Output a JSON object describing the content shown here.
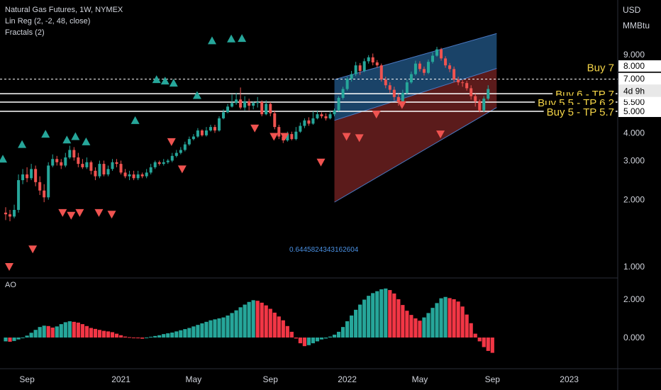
{
  "header": {
    "title": "Natural Gas Futures, 1W, NYMEX",
    "indicator1": "Lin Reg (2, -2, 48, close)",
    "indicator2": "Fractals (2)",
    "currency": "USD",
    "unit": "MMBtu"
  },
  "ao_label": "AO",
  "price_tag": {
    "value": "6.976",
    "countdown": "4d 9h"
  },
  "colors": {
    "up": "#26a69a",
    "down": "#ef5350",
    "ao_up": "#26a69a",
    "ao_down": "#f23645",
    "channel_upper": "#1e4f7a",
    "channel_lower": "#6b2020",
    "label": "#f5d547"
  },
  "chart_data": [
    {
      "type": "candlestick",
      "title": "Natural Gas Futures, 1W, NYMEX",
      "ylabel": "USD MMBtu",
      "y_ticks": [
        "1.000",
        "2.000",
        "3.000",
        "4.000",
        "5.000",
        "6.000",
        "7.000",
        "8.000",
        "9.000"
      ],
      "x_ticks": [
        "Sep",
        "2021",
        "May",
        "Sep",
        "2022",
        "May",
        "Sep",
        "2023"
      ],
      "x_tick_weeks": [
        5,
        27,
        44,
        62,
        80,
        97,
        114,
        132
      ],
      "right_labels": [
        "5.000",
        "5.500",
        "6.000",
        "6.976",
        "7.000",
        "8.000"
      ],
      "candles": [
        [
          1.75,
          1.72,
          1.85,
          1.62
        ],
        [
          1.72,
          1.68,
          1.8,
          1.6
        ],
        [
          1.68,
          1.8,
          1.9,
          1.65
        ],
        [
          1.8,
          2.45,
          2.6,
          1.75
        ],
        [
          2.45,
          2.6,
          2.75,
          2.35
        ],
        [
          2.6,
          2.5,
          2.8,
          2.4
        ],
        [
          2.5,
          2.75,
          2.9,
          2.45
        ],
        [
          2.75,
          2.4,
          2.85,
          2.3
        ],
        [
          2.4,
          2.2,
          2.55,
          2.1
        ],
        [
          2.2,
          2.05,
          2.35,
          1.95
        ],
        [
          2.05,
          2.85,
          2.95,
          2.0
        ],
        [
          2.85,
          3.05,
          3.2,
          2.8
        ],
        [
          3.05,
          2.95,
          3.15,
          2.85
        ],
        [
          2.95,
          2.85,
          3.05,
          2.75
        ],
        [
          2.85,
          3.1,
          3.25,
          2.8
        ],
        [
          3.1,
          3.35,
          3.5,
          3.05
        ],
        [
          3.35,
          3.1,
          3.45,
          3.0
        ],
        [
          3.1,
          2.9,
          3.25,
          2.8
        ],
        [
          2.9,
          2.8,
          3.05,
          2.75
        ],
        [
          2.8,
          2.95,
          3.1,
          2.75
        ],
        [
          2.95,
          2.7,
          3.0,
          2.6
        ],
        [
          2.7,
          2.55,
          2.8,
          2.45
        ],
        [
          2.55,
          2.9,
          3.0,
          2.5
        ],
        [
          2.9,
          2.6,
          3.0,
          2.55
        ],
        [
          2.6,
          2.75,
          2.85,
          2.55
        ],
        [
          2.75,
          2.95,
          3.05,
          2.7
        ],
        [
          2.95,
          2.9,
          3.05,
          2.8
        ],
        [
          2.9,
          2.65,
          3.0,
          2.6
        ],
        [
          2.65,
          2.55,
          2.75,
          2.5
        ],
        [
          2.55,
          2.6,
          2.7,
          2.45
        ],
        [
          2.6,
          2.5,
          2.7,
          2.45
        ],
        [
          2.5,
          2.6,
          2.7,
          2.45
        ],
        [
          2.6,
          2.55,
          2.65,
          2.5
        ],
        [
          2.55,
          2.65,
          2.75,
          2.5
        ],
        [
          2.65,
          2.8,
          2.9,
          2.6
        ],
        [
          2.8,
          2.95,
          3.0,
          2.75
        ],
        [
          2.95,
          2.9,
          3.0,
          2.85
        ],
        [
          2.9,
          2.95,
          3.05,
          2.85
        ],
        [
          2.95,
          3.0,
          3.05,
          2.9
        ],
        [
          3.0,
          3.15,
          3.25,
          2.95
        ],
        [
          3.15,
          3.25,
          3.35,
          3.1
        ],
        [
          3.25,
          3.35,
          3.45,
          3.2
        ],
        [
          3.35,
          3.55,
          3.65,
          3.3
        ],
        [
          3.55,
          3.75,
          3.85,
          3.5
        ],
        [
          3.75,
          3.85,
          3.95,
          3.7
        ],
        [
          3.85,
          4.1,
          4.2,
          3.8
        ],
        [
          4.1,
          3.9,
          4.15,
          3.85
        ],
        [
          3.9,
          4.1,
          4.25,
          3.85
        ],
        [
          4.1,
          4.25,
          4.35,
          4.05
        ],
        [
          4.25,
          4.1,
          4.35,
          4.0
        ],
        [
          4.1,
          4.65,
          4.75,
          4.05
        ],
        [
          4.65,
          4.95,
          5.1,
          4.6
        ],
        [
          4.95,
          5.25,
          5.4,
          4.9
        ],
        [
          5.25,
          5.45,
          5.95,
          5.2
        ],
        [
          5.45,
          5.65,
          6.05,
          5.35
        ],
        [
          5.65,
          5.2,
          6.4,
          5.1
        ],
        [
          5.2,
          5.55,
          5.85,
          5.05
        ],
        [
          5.55,
          5.3,
          5.7,
          5.05
        ],
        [
          5.3,
          5.45,
          5.55,
          5.1
        ],
        [
          5.45,
          5.5,
          5.8,
          5.2
        ],
        [
          5.5,
          4.85,
          5.6,
          4.75
        ],
        [
          4.85,
          5.4,
          5.6,
          4.8
        ],
        [
          5.4,
          4.9,
          5.5,
          4.75
        ],
        [
          4.9,
          4.25,
          5.05,
          4.15
        ],
        [
          4.25,
          3.85,
          4.35,
          3.75
        ],
        [
          3.85,
          3.7,
          3.95,
          3.6
        ],
        [
          3.7,
          3.95,
          4.05,
          3.65
        ],
        [
          3.95,
          3.75,
          4.05,
          3.7
        ],
        [
          3.75,
          4.05,
          4.25,
          3.7
        ],
        [
          4.05,
          4.3,
          4.45,
          4.0
        ],
        [
          4.3,
          4.55,
          4.65,
          4.2
        ],
        [
          4.55,
          4.4,
          4.7,
          4.3
        ],
        [
          4.4,
          4.65,
          5.0,
          4.35
        ],
        [
          4.65,
          4.85,
          5.05,
          4.6
        ],
        [
          4.85,
          4.75,
          4.95,
          4.65
        ],
        [
          4.75,
          4.65,
          4.9,
          4.55
        ],
        [
          4.65,
          4.85,
          5.0,
          4.6
        ],
        [
          4.85,
          5.05,
          5.15,
          4.75
        ],
        [
          5.05,
          5.75,
          5.85,
          5.0
        ],
        [
          5.75,
          6.3,
          6.45,
          5.65
        ],
        [
          6.3,
          7.0,
          7.15,
          6.2
        ],
        [
          7.0,
          7.35,
          7.6,
          6.8
        ],
        [
          7.35,
          8.05,
          8.35,
          7.2
        ],
        [
          8.05,
          7.6,
          8.25,
          7.3
        ],
        [
          7.6,
          8.4,
          8.65,
          7.5
        ],
        [
          8.4,
          8.75,
          8.95,
          8.2
        ],
        [
          8.75,
          8.3,
          9.1,
          8.05
        ],
        [
          8.3,
          8.05,
          8.5,
          7.85
        ],
        [
          8.05,
          6.95,
          8.2,
          6.8
        ],
        [
          6.95,
          6.55,
          7.15,
          6.35
        ],
        [
          6.55,
          6.25,
          6.75,
          6.05
        ],
        [
          6.25,
          5.8,
          6.45,
          5.6
        ],
        [
          5.8,
          5.5,
          6.0,
          5.3
        ],
        [
          5.5,
          6.05,
          6.25,
          5.4
        ],
        [
          6.05,
          6.75,
          6.95,
          5.95
        ],
        [
          6.75,
          7.35,
          7.55,
          6.65
        ],
        [
          7.35,
          8.2,
          8.45,
          7.25
        ],
        [
          8.2,
          7.75,
          8.4,
          7.55
        ],
        [
          7.75,
          7.45,
          7.95,
          7.25
        ],
        [
          7.45,
          8.35,
          8.55,
          7.35
        ],
        [
          8.35,
          8.9,
          9.2,
          8.2
        ],
        [
          8.9,
          9.5,
          9.75,
          8.8
        ],
        [
          9.5,
          8.65,
          9.65,
          8.45
        ],
        [
          8.65,
          8.05,
          8.85,
          7.85
        ],
        [
          8.05,
          7.75,
          8.25,
          7.5
        ],
        [
          7.75,
          6.95,
          7.95,
          6.75
        ],
        [
          6.95,
          6.75,
          7.15,
          6.55
        ],
        [
          6.75,
          6.7,
          6.9,
          6.45
        ],
        [
          6.7,
          6.35,
          6.85,
          6.2
        ],
        [
          6.35,
          5.85,
          6.55,
          5.65
        ],
        [
          5.85,
          5.55,
          6.0,
          5.25
        ],
        [
          5.55,
          5.05,
          5.65,
          4.95
        ],
        [
          5.05,
          5.7,
          5.85,
          4.95
        ],
        [
          5.7,
          6.3,
          6.55,
          5.6
        ]
      ],
      "fractals_up": [
        [
          0,
          3.05
        ],
        [
          9,
          3.55
        ],
        [
          20,
          3.95
        ],
        [
          30,
          3.72
        ],
        [
          34,
          3.85
        ],
        [
          39,
          3.65
        ],
        [
          62,
          4.55
        ],
        [
          72,
          6.95
        ],
        [
          76,
          6.85
        ],
        [
          80,
          6.7
        ],
        [
          91,
          5.9
        ],
        [
          98,
          10.4
        ],
        [
          107,
          10.6
        ],
        [
          112,
          10.65
        ]
      ],
      "fractals_down": [
        [
          3,
          1.0
        ],
        [
          14,
          1.2
        ],
        [
          28,
          1.75
        ],
        [
          32,
          1.7
        ],
        [
          36,
          1.75
        ],
        [
          45,
          1.75
        ],
        [
          51,
          1.72
        ],
        [
          79,
          3.65
        ],
        [
          84,
          2.75
        ],
        [
          118,
          4.2
        ],
        [
          127,
          3.85
        ],
        [
          132,
          3.85
        ],
        [
          149,
          2.95
        ],
        [
          161,
          3.85
        ],
        [
          167,
          3.8
        ],
        [
          175,
          4.85
        ],
        [
          187,
          5.35
        ],
        [
          205,
          3.95
        ]
      ],
      "regression_channel": {
        "start_week": 77,
        "end_week": 115,
        "upper": [
          6.95,
          11.2
        ],
        "mid": [
          4.55,
          7.8
        ],
        "lower": [
          1.95,
          5.2
        ],
        "label": "0.6445824343162604"
      },
      "horizontal_levels": [
        {
          "value": 6.976,
          "style": "dashed",
          "label": "Buy 7"
        },
        {
          "value": 6.0,
          "style": "solid",
          "label": "Buy 6 - TP 7"
        },
        {
          "value": 5.5,
          "style": "solid",
          "label": "Buy 5.5 - TP 6.2"
        },
        {
          "value": 5.0,
          "style": "solid",
          "label": "Buy 5 - TP 5.7"
        }
      ]
    },
    {
      "type": "bar",
      "title": "AO",
      "y_ticks": [
        "0.000",
        "2.000"
      ],
      "values": [
        -0.2,
        -0.22,
        -0.18,
        -0.1,
        -0.02,
        0.1,
        0.25,
        0.4,
        0.55,
        0.62,
        0.6,
        0.52,
        0.58,
        0.7,
        0.8,
        0.85,
        0.82,
        0.78,
        0.7,
        0.6,
        0.5,
        0.45,
        0.4,
        0.35,
        0.32,
        0.28,
        0.2,
        0.12,
        0.05,
        0.02,
        -0.02,
        -0.04,
        -0.06,
        -0.02,
        0.04,
        0.08,
        0.12,
        0.18,
        0.22,
        0.26,
        0.32,
        0.38,
        0.44,
        0.5,
        0.58,
        0.66,
        0.74,
        0.82,
        0.9,
        0.95,
        1.0,
        1.05,
        1.15,
        1.28,
        1.42,
        1.58,
        1.72,
        1.86,
        1.95,
        1.92,
        1.82,
        1.68,
        1.5,
        1.3,
        1.1,
        0.9,
        0.6,
        0.3,
        -0.05,
        -0.3,
        -0.45,
        -0.4,
        -0.3,
        -0.2,
        -0.1,
        -0.05,
        0.05,
        0.15,
        0.3,
        0.55,
        0.85,
        1.15,
        1.45,
        1.72,
        1.98,
        2.18,
        2.32,
        2.42,
        2.52,
        2.56,
        2.48,
        2.3,
        2.0,
        1.7,
        1.4,
        1.18,
        1.0,
        0.88,
        1.05,
        1.28,
        1.55,
        1.8,
        2.05,
        2.12,
        2.06,
        2.0,
        1.88,
        1.62,
        1.2,
        0.75,
        0.2,
        -0.2,
        -0.5,
        -0.7,
        -0.8
      ],
      "colors_by_change": true
    }
  ]
}
